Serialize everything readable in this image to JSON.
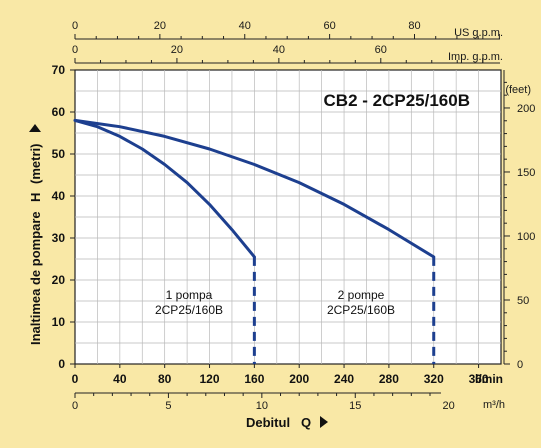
{
  "chart_data": {
    "type": "line",
    "title": "CB2 - 2CP25/160B",
    "xlabel": "Debitul",
    "xlabel_symbol": "Q",
    "ylabel": "Inaltimea de pompare",
    "ylabel_symbol": "H",
    "ylabel_unit": "(metri)",
    "x_lmin": {
      "range": [
        0,
        380
      ],
      "ticks": [
        "0",
        "40",
        "80",
        "120",
        "160",
        "200",
        "240",
        "280",
        "320",
        "360"
      ],
      "unit": "l/min"
    },
    "x_m3h": {
      "ticks": [
        "0",
        "5",
        "10",
        "15",
        "20"
      ],
      "unit": "m³/h"
    },
    "x_usgpm": {
      "ticks": [
        "0",
        "20",
        "40",
        "60",
        "80"
      ],
      "unit": "US g.p.m."
    },
    "x_impgpm": {
      "ticks": [
        "0",
        "20",
        "40",
        "60"
      ],
      "unit": "Imp. g.p.m."
    },
    "y_metri": {
      "range": [
        0,
        70
      ],
      "ticks": [
        "0",
        "10",
        "20",
        "30",
        "40",
        "50",
        "60",
        "70"
      ]
    },
    "y_feet": {
      "unit": "(feet)",
      "ticks": [
        "0",
        "50",
        "100",
        "150",
        "200"
      ]
    },
    "grid": true,
    "series": [
      {
        "name": "1 pompa 2CP25/160B",
        "label_lines": [
          "1 pompa",
          "2CP25/160B"
        ],
        "color": "#1d3f8f",
        "x": [
          0,
          20,
          40,
          60,
          80,
          100,
          120,
          140,
          160
        ],
        "y": [
          58,
          56.5,
          54.2,
          51.2,
          47.5,
          43.2,
          38,
          32,
          25.5
        ],
        "dashed_to_axis_at_x": 160
      },
      {
        "name": "2 pompe 2CP25/160B",
        "label_lines": [
          "2 pompe",
          "2CP25/160B"
        ],
        "color": "#1d3f8f",
        "x": [
          0,
          40,
          80,
          120,
          160,
          200,
          240,
          280,
          320
        ],
        "y": [
          58,
          56.5,
          54.2,
          51.2,
          47.5,
          43.2,
          38,
          32,
          25.5
        ],
        "dashed_to_axis_at_x": 320
      }
    ]
  }
}
